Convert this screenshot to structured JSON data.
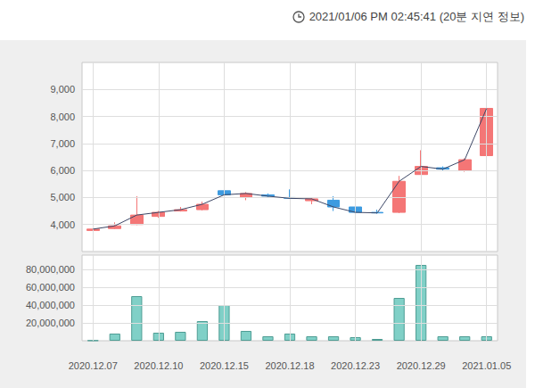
{
  "header": {
    "timestamp": "2021/01/06 PM 02:45:41 (20분 지연 정보)"
  },
  "chart_data": [
    {
      "type": "candlestick",
      "categories": [
        "2020.12.07",
        null,
        null,
        "2020.12.10",
        null,
        null,
        "2020.12.15",
        null,
        null,
        "2020.12.18",
        null,
        null,
        "2020.12.23",
        null,
        null,
        "2020.12.29",
        null,
        null,
        "2021.01.05"
      ],
      "open": [
        3780,
        3850,
        4000,
        4300,
        4500,
        4550,
        5250,
        5000,
        5100,
        5000,
        4880,
        4900,
        4650,
        4450,
        4450,
        5850,
        6100,
        6000,
        6550
      ],
      "close": [
        3830,
        3950,
        4350,
        4450,
        4550,
        4750,
        5100,
        5150,
        5050,
        4970,
        4950,
        4650,
        4450,
        4430,
        5600,
        6150,
        6050,
        6400,
        8300
      ],
      "low": [
        3760,
        3830,
        3980,
        4250,
        4480,
        4520,
        5000,
        4900,
        5000,
        4950,
        4750,
        4500,
        4400,
        4400,
        4420,
        5850,
        6000,
        5950,
        6500
      ],
      "high": [
        3850,
        4080,
        5050,
        4500,
        4650,
        4850,
        5450,
        5200,
        5150,
        5300,
        5000,
        5050,
        4700,
        4550,
        5800,
        6750,
        6150,
        6450,
        8300
      ],
      "colors": [
        "#f47676",
        "#f47676",
        "#f47676",
        "#f47676",
        "#f47676",
        "#f47676",
        "#3d9be0",
        "#f47676",
        "#3d9be0",
        "#3d9be0",
        "#f47676",
        "#3d9be0",
        "#3d9be0",
        "#3d9be0",
        "#f47676",
        "#f47676",
        "#3d9be0",
        "#f47676",
        "#f47676"
      ],
      "ylim": [
        3000,
        10000
      ],
      "yticks": [
        {
          "value": 4000,
          "label": "4,000"
        },
        {
          "value": 5000,
          "label": "5,000"
        },
        {
          "value": 6000,
          "label": "6,000"
        },
        {
          "value": 7000,
          "label": "7,000"
        },
        {
          "value": 8000,
          "label": "8,000"
        },
        {
          "value": 9000,
          "label": "9,000"
        }
      ],
      "grid": true,
      "tick_labels": "y"
    },
    {
      "type": "bar",
      "categories": [
        "2020.12.07",
        null,
        null,
        "2020.12.10",
        null,
        null,
        "2020.12.15",
        null,
        null,
        "2020.12.18",
        null,
        null,
        "2020.12.23",
        null,
        null,
        "2020.12.29",
        null,
        null,
        "2021.01.05"
      ],
      "values": [
        300000,
        8000000,
        50000000,
        9000000,
        10000000,
        22000000,
        40000000,
        11000000,
        5000000,
        8000000,
        5000000,
        5000000,
        4000000,
        2000000,
        48000000,
        85000000,
        5000000,
        5000000,
        5000000
      ],
      "color": "#80d0c7",
      "ylim": [
        0,
        96000000
      ],
      "yticks": [
        {
          "value": 20000000,
          "label": "20,000,000"
        },
        {
          "value": 40000000,
          "label": "40,000,000"
        },
        {
          "value": 60000000,
          "label": "60,000,000"
        },
        {
          "value": 80000000,
          "label": "80,000,000"
        }
      ],
      "grid": true,
      "tick_labels": true
    }
  ]
}
